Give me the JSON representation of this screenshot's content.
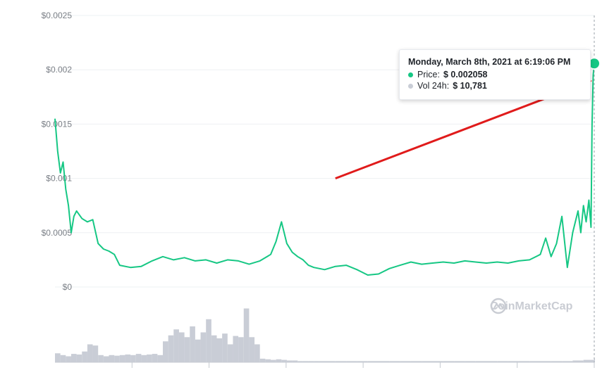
{
  "colors": {
    "price_line": "#16c784",
    "volume_bar": "#c9cdd6",
    "grid": "#eef0f3",
    "arrow": "#e01b1b",
    "tooltip_price_dot": "#16c784",
    "tooltip_volume_dot": "#c9cdd6",
    "watermark": "#c9ccd3"
  },
  "tooltip": {
    "title": "Monday, March 8th, 2021 at 6:19:06 PM",
    "price_label": "Price:",
    "price_value": "$ 0.002058",
    "volume_label": "Vol 24h:",
    "volume_value": "$ 10,781"
  },
  "watermark": {
    "text": "CoinMarketCap",
    "icon": "coinmarketcap-logo-icon"
  },
  "chart_data": {
    "type": "line",
    "title": "",
    "xlabel": "",
    "ylabel": "",
    "ylim": [
      0,
      0.0025
    ],
    "y_ticks": [
      "$0",
      "$0.0005",
      "$0.001",
      "$0.0015",
      "$0.002",
      "$0.0025"
    ],
    "y_tick_values": [
      0,
      0.0005,
      0.001,
      0.0015,
      0.002,
      0.0025
    ],
    "grid": true,
    "x_index_range": [
      0,
      100
    ],
    "price_series": {
      "name": "Price",
      "x": [
        0,
        0.5,
        1,
        1.5,
        2,
        2.5,
        3,
        3.5,
        4,
        5,
        6,
        7,
        8,
        9,
        10,
        11,
        12,
        14,
        16,
        18,
        20,
        22,
        24,
        26,
        28,
        30,
        32,
        34,
        36,
        38,
        40,
        41,
        42,
        43,
        44,
        45,
        46,
        47,
        48,
        50,
        52,
        54,
        56,
        58,
        60,
        62,
        64,
        66,
        68,
        70,
        72,
        74,
        76,
        78,
        80,
        82,
        84,
        86,
        88,
        90,
        91,
        92,
        93,
        94,
        95,
        96,
        97,
        97.5,
        98,
        98.5,
        99,
        99.4,
        99.6,
        99.8,
        100
      ],
      "y": [
        0.00155,
        0.00125,
        0.00105,
        0.00115,
        0.0009,
        0.00075,
        0.0005,
        0.00065,
        0.0007,
        0.00063,
        0.0006,
        0.00062,
        0.0004,
        0.00035,
        0.00033,
        0.0003,
        0.0002,
        0.00018,
        0.00019,
        0.00024,
        0.00028,
        0.00025,
        0.00027,
        0.00024,
        0.00025,
        0.00022,
        0.00025,
        0.00024,
        0.00021,
        0.00024,
        0.0003,
        0.00042,
        0.0006,
        0.0004,
        0.00032,
        0.00028,
        0.00025,
        0.0002,
        0.00018,
        0.00016,
        0.00019,
        0.0002,
        0.00016,
        0.00011,
        0.00012,
        0.00017,
        0.0002,
        0.00023,
        0.00021,
        0.00022,
        0.00023,
        0.00022,
        0.00024,
        0.00023,
        0.00022,
        0.00023,
        0.00022,
        0.00024,
        0.00025,
        0.0003,
        0.00045,
        0.00028,
        0.0004,
        0.00065,
        0.00018,
        0.0005,
        0.0007,
        0.0005,
        0.00075,
        0.0006,
        0.0008,
        0.00055,
        0.0015,
        0.00195,
        0.002058
      ]
    },
    "volume_series": {
      "name": "Vol 24h",
      "x": [
        0,
        1,
        2,
        3,
        4,
        5,
        6,
        7,
        8,
        9,
        10,
        11,
        12,
        13,
        14,
        15,
        16,
        17,
        18,
        19,
        20,
        21,
        22,
        23,
        24,
        25,
        26,
        27,
        28,
        29,
        30,
        31,
        32,
        33,
        34,
        35,
        36,
        37,
        38,
        39,
        40,
        41,
        42,
        43,
        44,
        45,
        46,
        47,
        48,
        49,
        50,
        52,
        54,
        56,
        58,
        60,
        62,
        64,
        66,
        68,
        70,
        72,
        74,
        76,
        78,
        80,
        82,
        84,
        86,
        88,
        90,
        92,
        94,
        96,
        98,
        100
      ],
      "y": [
        0.15,
        0.12,
        0.1,
        0.14,
        0.13,
        0.18,
        0.3,
        0.28,
        0.12,
        0.1,
        0.12,
        0.11,
        0.12,
        0.13,
        0.12,
        0.14,
        0.12,
        0.13,
        0.14,
        0.12,
        0.35,
        0.45,
        0.55,
        0.5,
        0.42,
        0.6,
        0.38,
        0.5,
        0.72,
        0.45,
        0.4,
        0.48,
        0.3,
        0.44,
        0.42,
        0.9,
        0.42,
        0.3,
        0.06,
        0.05,
        0.04,
        0.05,
        0.04,
        0.03,
        0.03,
        0.02,
        0.02,
        0.02,
        0.02,
        0.02,
        0.02,
        0.02,
        0.02,
        0.02,
        0.02,
        0.02,
        0.02,
        0.02,
        0.02,
        0.02,
        0.02,
        0.02,
        0.02,
        0.02,
        0.02,
        0.02,
        0.02,
        0.02,
        0.02,
        0.02,
        0.02,
        0.02,
        0.02,
        0.03,
        0.04,
        0.06
      ]
    },
    "annotations": [
      {
        "type": "arrow",
        "from_data": [
          52,
          0.001
        ],
        "to_data": [
          99.6,
          0.0019
        ]
      },
      {
        "type": "hover-marker",
        "at_data": [
          100,
          0.002058
        ]
      }
    ]
  }
}
